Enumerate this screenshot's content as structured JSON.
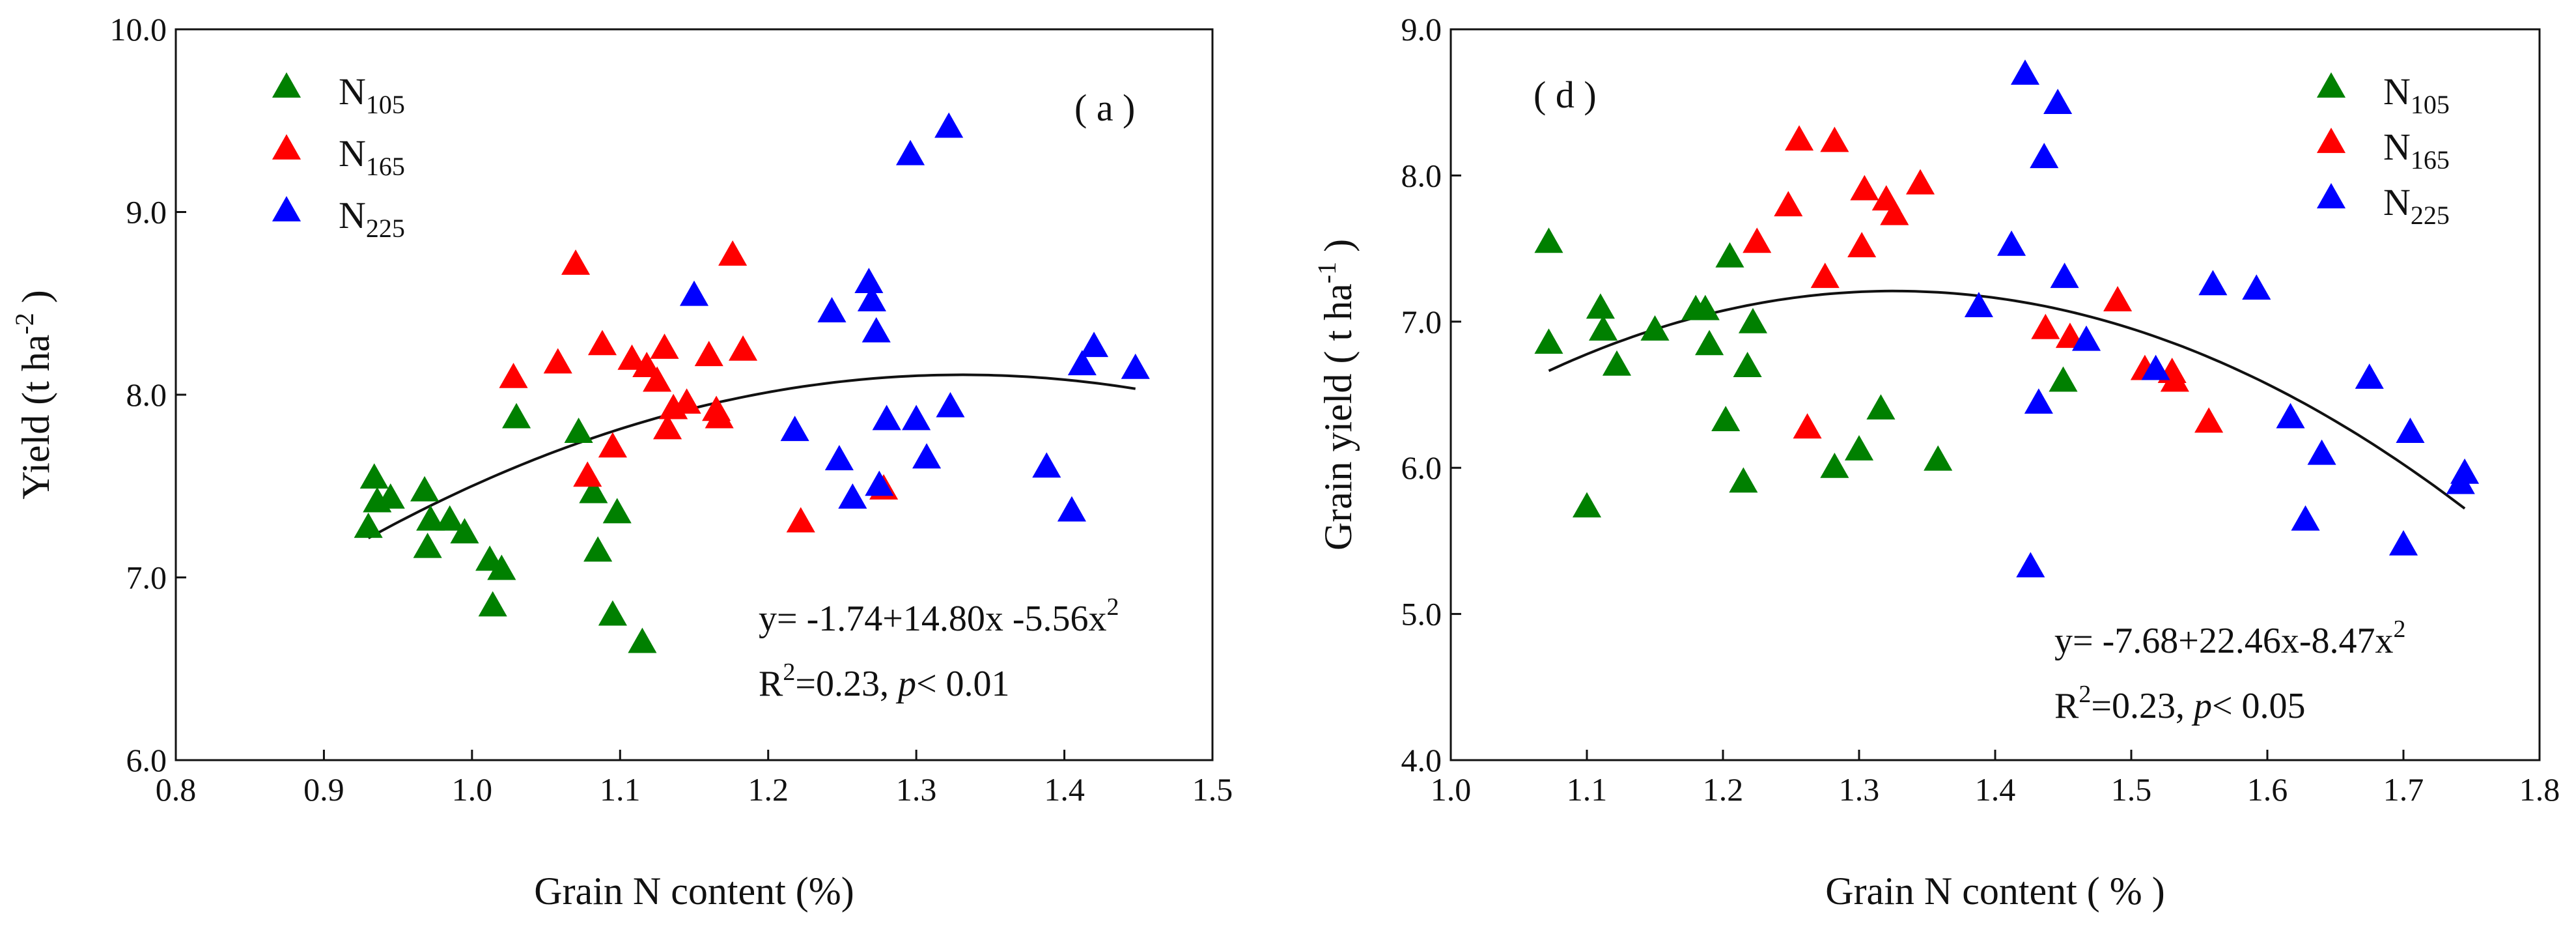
{
  "chart_data": [
    {
      "type": "scatter",
      "panel_label": "( a )",
      "xlabel": "Grain N content (%)",
      "ylabel": {
        "main": "Yield (t ha",
        "sup": "-2",
        "end": " )"
      },
      "xlim": [
        0.8,
        1.5
      ],
      "ylim": [
        6.0,
        10.0
      ],
      "xticks": [
        "0.8",
        "0.9",
        "1.0",
        "1.1",
        "1.2",
        "1.3",
        "1.4",
        "1.5"
      ],
      "yticks": [
        "6.0",
        "7.0",
        "8.0",
        "9.0",
        "10.0"
      ],
      "legend_position": "top-left",
      "series": [
        {
          "name": "N105",
          "label_main": "N",
          "label_sub": "105",
          "color": "#008000",
          "points": [
            [
              0.93,
              7.28
            ],
            [
              0.934,
              7.55
            ],
            [
              0.936,
              7.42
            ],
            [
              0.945,
              7.44
            ],
            [
              0.968,
              7.48
            ],
            [
              0.97,
              7.17
            ],
            [
              0.972,
              7.32
            ],
            [
              0.985,
              7.32
            ],
            [
              0.995,
              7.25
            ],
            [
              1.012,
              7.1
            ],
            [
              1.014,
              6.85
            ],
            [
              1.02,
              7.05
            ],
            [
              1.03,
              7.88
            ],
            [
              1.072,
              7.8
            ],
            [
              1.082,
              7.47
            ],
            [
              1.085,
              7.15
            ],
            [
              1.095,
              6.8
            ],
            [
              1.098,
              7.36
            ],
            [
              1.115,
              6.65
            ]
          ]
        },
        {
          "name": "N165",
          "label_main": "N",
          "label_sub": "165",
          "color": "#ff0000",
          "points": [
            [
              1.028,
              8.1
            ],
            [
              1.058,
              8.18
            ],
            [
              1.07,
              8.72
            ],
            [
              1.078,
              7.56
            ],
            [
              1.088,
              8.28
            ],
            [
              1.095,
              7.72
            ],
            [
              1.108,
              8.2
            ],
            [
              1.118,
              8.16
            ],
            [
              1.125,
              8.08
            ],
            [
              1.13,
              8.26
            ],
            [
              1.132,
              7.82
            ],
            [
              1.136,
              7.93
            ],
            [
              1.145,
              7.96
            ],
            [
              1.16,
              8.22
            ],
            [
              1.165,
              7.92
            ],
            [
              1.167,
              7.88
            ],
            [
              1.176,
              8.77
            ],
            [
              1.183,
              8.25
            ],
            [
              1.222,
              7.31
            ],
            [
              1.278,
              7.49
            ]
          ]
        },
        {
          "name": "N225",
          "label_main": "N",
          "label_sub": "225",
          "color": "#0000ff",
          "points": [
            [
              1.15,
              8.55
            ],
            [
              1.218,
              7.81
            ],
            [
              1.243,
              8.46
            ],
            [
              1.248,
              7.65
            ],
            [
              1.257,
              7.44
            ],
            [
              1.268,
              8.62
            ],
            [
              1.27,
              8.52
            ],
            [
              1.273,
              8.35
            ],
            [
              1.275,
              7.51
            ],
            [
              1.28,
              7.87
            ],
            [
              1.296,
              9.32
            ],
            [
              1.3,
              7.87
            ],
            [
              1.307,
              7.66
            ],
            [
              1.322,
              9.47
            ],
            [
              1.323,
              7.94
            ],
            [
              1.388,
              7.61
            ],
            [
              1.405,
              7.37
            ],
            [
              1.412,
              8.17
            ],
            [
              1.42,
              8.27
            ],
            [
              1.448,
              8.15
            ]
          ]
        }
      ],
      "fit": {
        "a": -1.74,
        "b": 14.8,
        "c": -5.56,
        "xrange": [
          0.93,
          1.448
        ]
      },
      "equation": {
        "main": "y=  -1.74+14.80x -5.56x",
        "sup": "2"
      },
      "r2": {
        "r": "R",
        "sup": "2",
        "rest": "=0.23, ",
        "p": "p",
        "tail": "< 0.01"
      }
    },
    {
      "type": "scatter",
      "panel_label": "( d )",
      "xlabel": "Grain N content ( % )",
      "ylabel": {
        "main": "Grain yield ( t ha",
        "sup": "-1",
        "end": " )"
      },
      "xlim": [
        1.0,
        1.8
      ],
      "ylim": [
        4.0,
        9.0
      ],
      "xticks": [
        "1.0",
        "1.1",
        "1.2",
        "1.3",
        "1.4",
        "1.5",
        "1.6",
        "1.7",
        "1.8"
      ],
      "yticks": [
        "4.0",
        "5.0",
        "6.0",
        "7.0",
        "8.0",
        "9.0"
      ],
      "legend_position": "top-right",
      "series": [
        {
          "name": "N105",
          "label_main": "N",
          "label_sub": "105",
          "color": "#008000",
          "points": [
            [
              1.072,
              7.55
            ],
            [
              1.072,
              6.86
            ],
            [
              1.1,
              5.74
            ],
            [
              1.11,
              7.1
            ],
            [
              1.112,
              6.95
            ],
            [
              1.122,
              6.71
            ],
            [
              1.15,
              6.95
            ],
            [
              1.18,
              7.09
            ],
            [
              1.187,
              7.09
            ],
            [
              1.19,
              6.85
            ],
            [
              1.202,
              6.33
            ],
            [
              1.205,
              7.45
            ],
            [
              1.215,
              5.91
            ],
            [
              1.218,
              6.7
            ],
            [
              1.222,
              7.0
            ],
            [
              1.282,
              6.01
            ],
            [
              1.3,
              6.13
            ],
            [
              1.316,
              6.41
            ],
            [
              1.358,
              6.06
            ],
            [
              1.45,
              6.6
            ]
          ]
        },
        {
          "name": "N165",
          "label_main": "N",
          "label_sub": "165",
          "color": "#ff0000",
          "points": [
            [
              1.225,
              7.55
            ],
            [
              1.248,
              7.8
            ],
            [
              1.256,
              8.25
            ],
            [
              1.262,
              6.28
            ],
            [
              1.275,
              7.31
            ],
            [
              1.282,
              8.24
            ],
            [
              1.302,
              7.52
            ],
            [
              1.304,
              7.91
            ],
            [
              1.32,
              7.84
            ],
            [
              1.326,
              7.74
            ],
            [
              1.345,
              7.95
            ],
            [
              1.437,
              6.96
            ],
            [
              1.455,
              6.9
            ],
            [
              1.49,
              7.15
            ],
            [
              1.51,
              6.68
            ],
            [
              1.53,
              6.66
            ],
            [
              1.532,
              6.6
            ],
            [
              1.557,
              6.32
            ]
          ]
        },
        {
          "name": "N225",
          "label_main": "N",
          "label_sub": "225",
          "color": "#0000ff",
          "points": [
            [
              1.388,
              7.11
            ],
            [
              1.412,
              7.53
            ],
            [
              1.422,
              8.7
            ],
            [
              1.426,
              5.33
            ],
            [
              1.432,
              6.45
            ],
            [
              1.436,
              8.13
            ],
            [
              1.446,
              8.5
            ],
            [
              1.451,
              7.31
            ],
            [
              1.467,
              6.88
            ],
            [
              1.518,
              6.68
            ],
            [
              1.56,
              7.26
            ],
            [
              1.592,
              7.23
            ],
            [
              1.617,
              6.35
            ],
            [
              1.628,
              5.65
            ],
            [
              1.64,
              6.1
            ],
            [
              1.675,
              6.62
            ],
            [
              1.7,
              5.48
            ],
            [
              1.705,
              6.25
            ],
            [
              1.742,
              5.9
            ],
            [
              1.745,
              5.97
            ]
          ]
        }
      ],
      "fit": {
        "a": -7.68,
        "b": 22.46,
        "c": -8.47,
        "xrange": [
          1.072,
          1.745
        ]
      },
      "equation": {
        "main": "y= -7.68+22.46x-8.47x",
        "sup": "2"
      },
      "r2": {
        "r": "R",
        "sup": "2",
        "rest": "=0.23, ",
        "p": "p",
        "tail": "< 0.05"
      }
    }
  ]
}
